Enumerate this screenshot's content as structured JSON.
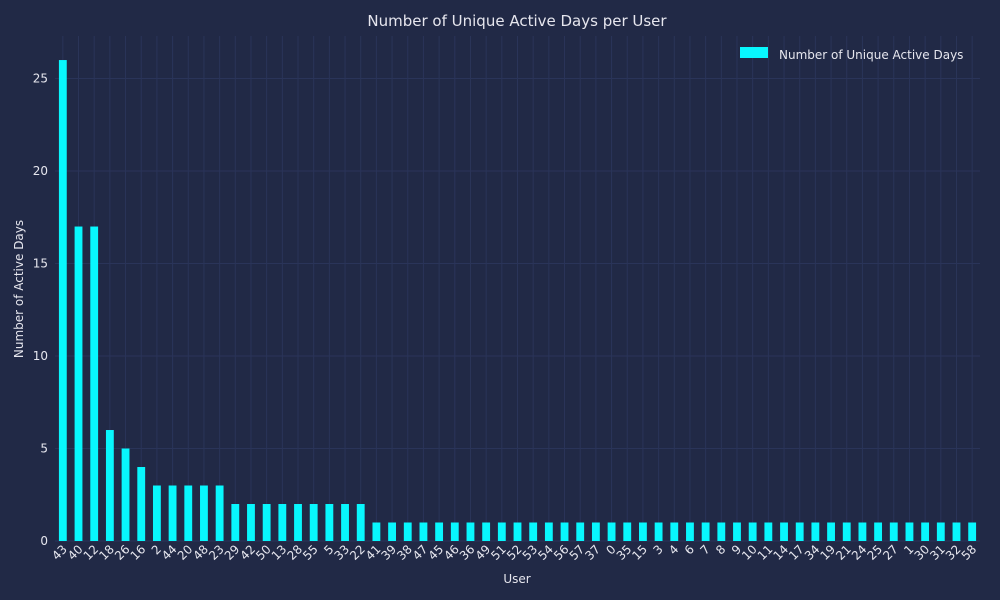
{
  "chart_data": {
    "type": "bar",
    "title": "Number of Unique Active Days per User",
    "xlabel": "User",
    "ylabel": "Number of Active Days",
    "ylim": [
      0,
      27.3
    ],
    "yticks": [
      0,
      5,
      10,
      15,
      20,
      25
    ],
    "grid": true,
    "legend_position": "top-right",
    "categories": [
      "43",
      "40",
      "12",
      "18",
      "26",
      "16",
      "2",
      "44",
      "20",
      "48",
      "23",
      "29",
      "42",
      "50",
      "13",
      "28",
      "55",
      "5",
      "33",
      "22",
      "41",
      "39",
      "38",
      "47",
      "45",
      "46",
      "36",
      "49",
      "51",
      "52",
      "53",
      "54",
      "56",
      "57",
      "37",
      "0",
      "35",
      "15",
      "3",
      "4",
      "6",
      "7",
      "8",
      "9",
      "10",
      "11",
      "14",
      "17",
      "34",
      "19",
      "21",
      "24",
      "25",
      "27",
      "1",
      "30",
      "31",
      "32",
      "58"
    ],
    "series": [
      {
        "name": "Number of Unique Active Days",
        "color": "#08F7FE",
        "values": [
          26,
          17,
          17,
          6,
          5,
          4,
          3,
          3,
          3,
          3,
          3,
          2,
          2,
          2,
          2,
          2,
          2,
          2,
          2,
          2,
          1,
          1,
          1,
          1,
          1,
          1,
          1,
          1,
          1,
          1,
          1,
          1,
          1,
          1,
          1,
          1,
          1,
          1,
          1,
          1,
          1,
          1,
          1,
          1,
          1,
          1,
          1,
          1,
          1,
          1,
          1,
          1,
          1,
          1,
          1,
          1,
          1,
          1,
          1
        ]
      }
    ]
  },
  "colors": {
    "background": "#212946",
    "grid": "#2A3459",
    "text": "#e6e6ee",
    "bar": "#08F7FE"
  }
}
